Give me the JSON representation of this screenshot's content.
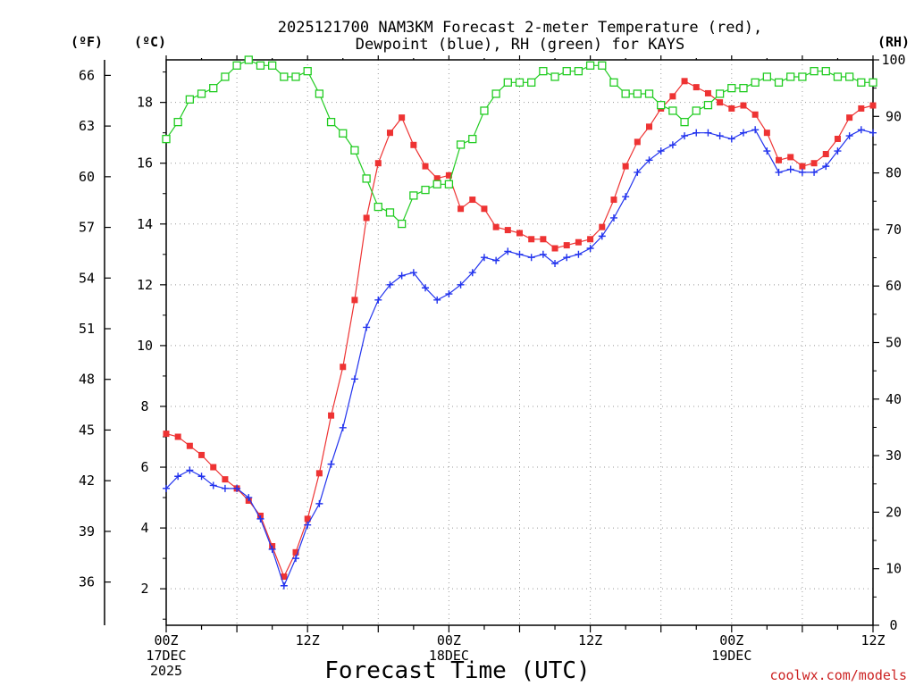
{
  "chart_data": {
    "type": "line",
    "title_line1": "2025121700 NAM3KM Forecast 2-meter Temperature (red),",
    "title_line2": "Dewpoint (blue), RH (green) for KAYS",
    "left_unit_f": "(ºF)",
    "left_unit_c": "(ºC)",
    "right_unit": "(RH)",
    "xlabel": "Forecast Time (UTC)",
    "credit": "coolwx.com/models",
    "x_tick_labels": [
      {
        "hour": 0,
        "lines": [
          "00Z",
          "17DEC",
          "2025"
        ]
      },
      {
        "hour": 12,
        "lines": [
          "12Z"
        ]
      },
      {
        "hour": 24,
        "lines": [
          "00Z",
          "18DEC"
        ]
      },
      {
        "hour": 36,
        "lines": [
          "12Z"
        ]
      },
      {
        "hour": 48,
        "lines": [
          "00Z",
          "19DEC"
        ]
      },
      {
        "hour": 60,
        "lines": [
          "12Z"
        ]
      }
    ],
    "xlim": [
      0,
      60
    ],
    "ylim_c": [
      0.8,
      19.4
    ],
    "ylim_rh": [
      0,
      100
    ],
    "y_ticks_c": [
      2,
      4,
      6,
      8,
      10,
      12,
      14,
      16,
      18
    ],
    "y_ticks_f": [
      36,
      39,
      42,
      45,
      48,
      51,
      54,
      57,
      60,
      63,
      66
    ],
    "y_ticks_rh": [
      0,
      10,
      20,
      30,
      40,
      50,
      60,
      70,
      80,
      90,
      100
    ],
    "hours": [
      0,
      1,
      2,
      3,
      4,
      5,
      6,
      7,
      8,
      9,
      10,
      11,
      12,
      13,
      14,
      15,
      16,
      17,
      18,
      19,
      20,
      21,
      22,
      23,
      24,
      25,
      26,
      27,
      28,
      29,
      30,
      31,
      32,
      33,
      34,
      35,
      36,
      37,
      38,
      39,
      40,
      41,
      42,
      43,
      44,
      45,
      46,
      47,
      48,
      49,
      50,
      51,
      52,
      53,
      54,
      55,
      56,
      57,
      58,
      59,
      60
    ],
    "series": [
      {
        "name": "Temperature",
        "unit": "C",
        "color": "#ee3333",
        "marker": "filled-square",
        "values": [
          7.1,
          7.0,
          6.7,
          6.4,
          6.0,
          5.6,
          5.3,
          4.9,
          4.4,
          3.4,
          2.4,
          3.2,
          4.3,
          5.8,
          7.7,
          9.3,
          11.5,
          14.2,
          16.0,
          17.0,
          17.5,
          16.6,
          15.9,
          15.5,
          15.6,
          14.5,
          14.8,
          14.5,
          13.9,
          13.8,
          13.7,
          13.5,
          13.5,
          13.2,
          13.3,
          13.4,
          13.5,
          13.9,
          14.8,
          15.9,
          16.7,
          17.2,
          17.8,
          18.2,
          18.7,
          18.5,
          18.3,
          18.0,
          17.8,
          17.9,
          17.6,
          17.0,
          16.1,
          16.2,
          15.9,
          16.0,
          16.3,
          16.8,
          17.5,
          17.8,
          17.9
        ]
      },
      {
        "name": "Dewpoint",
        "unit": "C",
        "color": "#2233ee",
        "marker": "plus",
        "values": [
          5.3,
          5.7,
          5.9,
          5.7,
          5.4,
          5.3,
          5.3,
          5.0,
          4.3,
          3.3,
          2.1,
          3.0,
          4.1,
          4.8,
          6.1,
          7.3,
          8.9,
          10.6,
          11.5,
          12.0,
          12.3,
          12.4,
          11.9,
          11.5,
          11.7,
          12.0,
          12.4,
          12.9,
          12.8,
          13.1,
          13.0,
          12.9,
          13.0,
          12.7,
          12.9,
          13.0,
          13.2,
          13.6,
          14.2,
          14.9,
          15.7,
          16.1,
          16.4,
          16.6,
          16.9,
          17.0,
          17.0,
          16.9,
          16.8,
          17.0,
          17.1,
          16.4,
          15.7,
          15.8,
          15.7,
          15.7,
          15.9,
          16.4,
          16.9,
          17.1,
          17.0
        ]
      },
      {
        "name": "RH",
        "unit": "%",
        "color": "#22cc22",
        "marker": "open-square",
        "values": [
          86,
          89,
          93,
          94,
          95,
          97,
          99,
          100,
          99,
          99,
          97,
          97,
          98,
          94,
          89,
          87,
          84,
          79,
          74,
          73,
          71,
          76,
          77,
          78,
          78,
          85,
          86,
          91,
          94,
          96,
          96,
          96,
          98,
          97,
          98,
          98,
          99,
          99,
          96,
          94,
          94,
          94,
          92,
          91,
          89,
          91,
          92,
          94,
          95,
          95,
          96,
          97,
          96,
          97,
          97,
          98,
          98,
          97,
          97,
          96,
          96
        ]
      }
    ]
  }
}
